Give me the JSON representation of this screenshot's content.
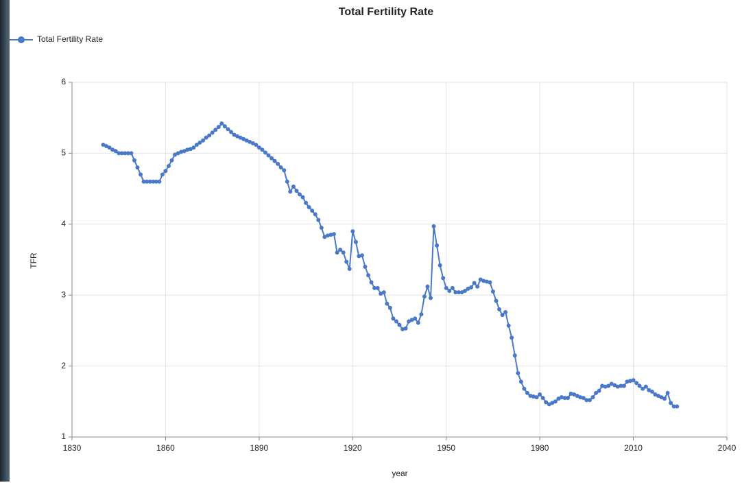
{
  "chart_data": {
    "type": "line",
    "title": "Total Fertility Rate",
    "x_label": "year",
    "y_label": "TFR",
    "x": [
      1840,
      1841,
      1842,
      1843,
      1844,
      1845,
      1846,
      1847,
      1848,
      1849,
      1850,
      1851,
      1852,
      1853,
      1854,
      1855,
      1856,
      1857,
      1858,
      1859,
      1860,
      1861,
      1862,
      1863,
      1864,
      1865,
      1866,
      1867,
      1868,
      1869,
      1870,
      1871,
      1872,
      1873,
      1874,
      1875,
      1876,
      1877,
      1878,
      1879,
      1880,
      1881,
      1882,
      1883,
      1884,
      1885,
      1886,
      1887,
      1888,
      1889,
      1890,
      1891,
      1892,
      1893,
      1894,
      1895,
      1896,
      1897,
      1898,
      1899,
      1900,
      1901,
      1902,
      1903,
      1904,
      1905,
      1906,
      1907,
      1908,
      1909,
      1910,
      1911,
      1912,
      1913,
      1914,
      1915,
      1916,
      1917,
      1918,
      1919,
      1920,
      1921,
      1922,
      1923,
      1924,
      1925,
      1926,
      1927,
      1928,
      1929,
      1930,
      1931,
      1932,
      1933,
      1934,
      1935,
      1936,
      1937,
      1938,
      1939,
      1940,
      1941,
      1942,
      1943,
      1944,
      1945,
      1946,
      1947,
      1948,
      1949,
      1950,
      1951,
      1952,
      1953,
      1954,
      1955,
      1956,
      1957,
      1958,
      1959,
      1960,
      1961,
      1962,
      1963,
      1964,
      1965,
      1966,
      1967,
      1968,
      1969,
      1970,
      1971,
      1972,
      1973,
      1974,
      1975,
      1976,
      1977,
      1978,
      1979,
      1980,
      1981,
      1982,
      1983,
      1984,
      1985,
      1986,
      1987,
      1988,
      1989,
      1990,
      1991,
      1992,
      1993,
      1994,
      1995,
      1996,
      1997,
      1998,
      1999,
      2000,
      2001,
      2002,
      2003,
      2004,
      2005,
      2006,
      2007,
      2008,
      2009,
      2010,
      2011,
      2012,
      2013,
      2014,
      2015,
      2016,
      2017,
      2018,
      2019,
      2020,
      2021,
      2022,
      2023,
      2024
    ],
    "series": [
      {
        "name": "Total Fertility Rate",
        "color": "#4a78c8",
        "values": [
          5.12,
          5.1,
          5.08,
          5.05,
          5.03,
          5.0,
          5.0,
          5.0,
          5.0,
          5.0,
          4.9,
          4.8,
          4.7,
          4.6,
          4.6,
          4.6,
          4.6,
          4.6,
          4.6,
          4.7,
          4.75,
          4.82,
          4.9,
          4.98,
          5.0,
          5.02,
          5.03,
          5.05,
          5.06,
          5.08,
          5.12,
          5.15,
          5.18,
          5.22,
          5.25,
          5.29,
          5.33,
          5.37,
          5.42,
          5.38,
          5.34,
          5.3,
          5.26,
          5.24,
          5.22,
          5.2,
          5.18,
          5.16,
          5.14,
          5.12,
          5.08,
          5.05,
          5.01,
          4.97,
          4.93,
          4.89,
          4.85,
          4.8,
          4.76,
          4.6,
          4.46,
          4.53,
          4.47,
          4.42,
          4.38,
          4.3,
          4.24,
          4.19,
          4.14,
          4.06,
          3.95,
          3.82,
          3.84,
          3.85,
          3.86,
          3.6,
          3.64,
          3.6,
          3.47,
          3.37,
          3.9,
          3.75,
          3.55,
          3.56,
          3.4,
          3.28,
          3.18,
          3.1,
          3.1,
          3.02,
          3.04,
          2.88,
          2.82,
          2.67,
          2.63,
          2.58,
          2.52,
          2.53,
          2.63,
          2.65,
          2.67,
          2.61,
          2.73,
          2.98,
          3.12,
          2.96,
          3.97,
          3.7,
          3.42,
          3.24,
          3.1,
          3.06,
          3.1,
          3.04,
          3.04,
          3.04,
          3.06,
          3.09,
          3.11,
          3.17,
          3.12,
          3.22,
          3.2,
          3.19,
          3.18,
          3.05,
          2.92,
          2.8,
          2.72,
          2.76,
          2.57,
          2.4,
          2.15,
          1.9,
          1.78,
          1.68,
          1.62,
          1.58,
          1.57,
          1.56,
          1.6,
          1.55,
          1.49,
          1.46,
          1.48,
          1.5,
          1.54,
          1.56,
          1.55,
          1.55,
          1.61,
          1.6,
          1.58,
          1.56,
          1.55,
          1.52,
          1.52,
          1.56,
          1.62,
          1.65,
          1.72,
          1.71,
          1.72,
          1.75,
          1.73,
          1.71,
          1.72,
          1.72,
          1.78,
          1.79,
          1.8,
          1.76,
          1.72,
          1.68,
          1.71,
          1.66,
          1.64,
          1.6,
          1.58,
          1.56,
          1.54,
          1.62,
          1.48,
          1.43,
          1.43
        ]
      }
    ],
    "xlim": [
      1830,
      2040
    ],
    "xticks": [
      1830,
      1860,
      1890,
      1920,
      1950,
      1980,
      2010,
      2040
    ],
    "ylim": [
      1,
      6
    ],
    "yticks": [
      1,
      2,
      3,
      4,
      5,
      6
    ],
    "grid": true,
    "legend": "top-left"
  }
}
